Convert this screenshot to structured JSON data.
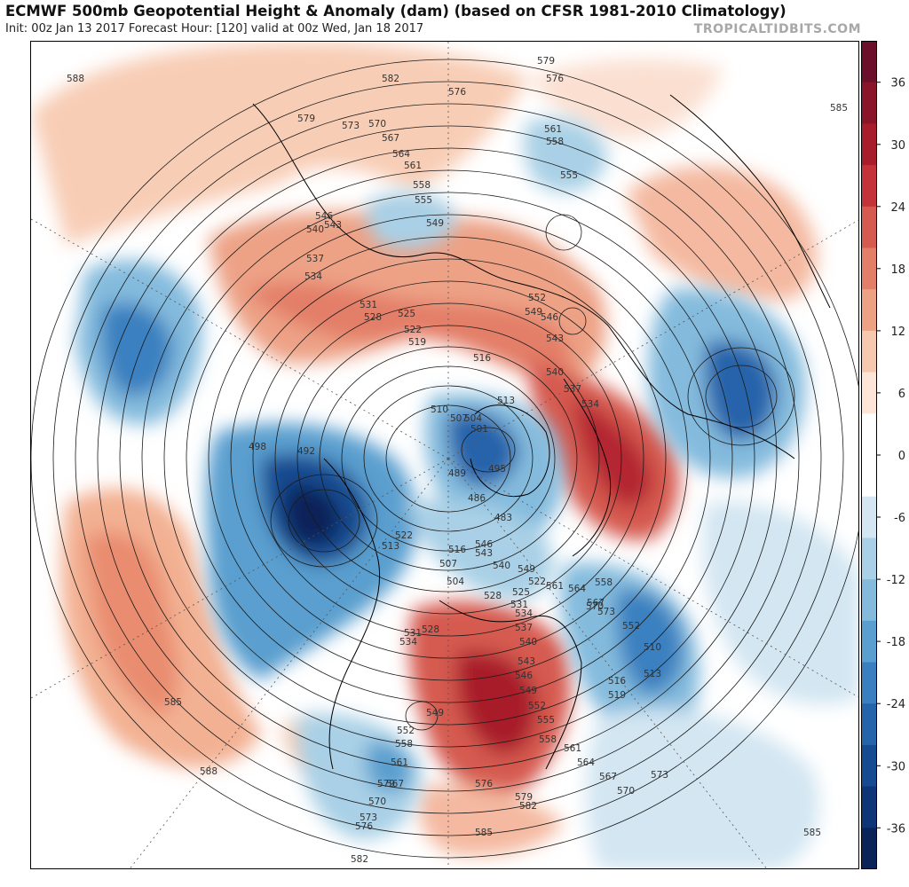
{
  "header": {
    "title": "ECMWF 500mb Geopotential Height & Anomaly (dam) (based on CFSR 1981-2010 Climatology)",
    "subtitle": "Init: 00z Jan 13 2017   Forecast Hour: [120]   valid at 00z Wed, Jan 18 2017",
    "brand": "TROPICALTIDBITS.COM"
  },
  "colorbar": {
    "ticks": [
      "36",
      "30",
      "24",
      "18",
      "12",
      "6",
      "0",
      "-6",
      "-12",
      "-18",
      "-24",
      "-30",
      "-36"
    ],
    "colors": [
      "#6b0f2a",
      "#8a1428",
      "#a81d2c",
      "#c4323a",
      "#d55a4f",
      "#e37e68",
      "#eda286",
      "#f6c8b0",
      "#fde6d8",
      "#ffffff",
      "#ffffff",
      "#d3e6f2",
      "#a9d0e6",
      "#84bbdd",
      "#5a9fcf",
      "#3a80c0",
      "#2564aa",
      "#164b91",
      "#0e3577",
      "#0a2459"
    ]
  },
  "contour_labels": {
    "items": [
      "588",
      "582",
      "576",
      "579",
      "576",
      "585",
      "579",
      "573",
      "570",
      "567",
      "564",
      "561",
      "558",
      "555",
      "549",
      "546",
      "543",
      "540",
      "537",
      "534",
      "561",
      "558",
      "555",
      "552",
      "549",
      "546",
      "543",
      "540",
      "537",
      "534",
      "531",
      "528",
      "525",
      "522",
      "519",
      "516",
      "513",
      "510",
      "507",
      "504",
      "501",
      "498",
      "492",
      "495",
      "489",
      "486",
      "483",
      "546",
      "543",
      "540",
      "549",
      "558",
      "561",
      "564",
      "567",
      "570",
      "573",
      "552",
      "510",
      "513",
      "516",
      "519",
      "522",
      "525",
      "528",
      "531",
      "534",
      "537",
      "540",
      "543",
      "546",
      "549",
      "552",
      "555",
      "558",
      "561",
      "564",
      "567",
      "570",
      "573",
      "576",
      "579",
      "582",
      "585",
      "588",
      "585",
      "585",
      "582",
      "579",
      "576",
      "573",
      "570",
      "567",
      "561",
      "558",
      "552",
      "549",
      "534",
      "531",
      "528",
      "522",
      "513",
      "516",
      "507",
      "504"
    ]
  }
}
